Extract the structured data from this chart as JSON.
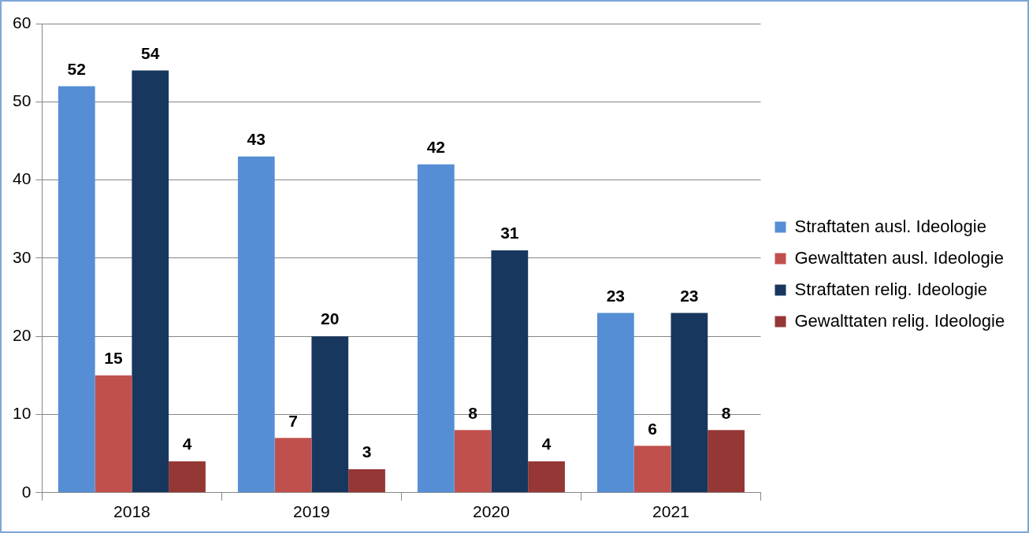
{
  "chart_data": {
    "type": "bar",
    "categories": [
      "2018",
      "2019",
      "2020",
      "2021"
    ],
    "series": [
      {
        "name": "Straftaten ausl. Ideologie",
        "color": "#558ed5",
        "values": [
          52,
          43,
          42,
          23
        ]
      },
      {
        "name": "Gewalttaten ausl. Ideologie",
        "color": "#c0504d",
        "values": [
          15,
          7,
          8,
          6
        ]
      },
      {
        "name": "Straftaten relig. Ideologie",
        "color": "#17375e",
        "values": [
          54,
          20,
          31,
          23
        ]
      },
      {
        "name": "Gewalttaten relig. Ideologie",
        "color": "#953735",
        "values": [
          4,
          3,
          4,
          8
        ]
      }
    ],
    "ylim": [
      0,
      60
    ],
    "yticks": [
      0,
      10,
      20,
      30,
      40,
      50,
      60
    ],
    "grid": "y",
    "legend": "right",
    "data_labels": true
  }
}
